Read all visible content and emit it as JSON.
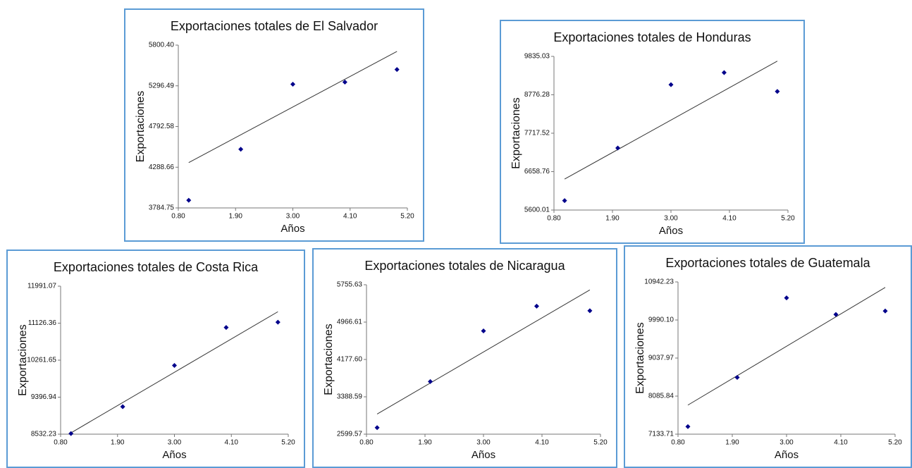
{
  "chart_data": [
    {
      "type": "scatter",
      "title": "Exportaciones totales de El Salvador",
      "x_label": "Años",
      "y_label": "Exportaciones",
      "x": [
        1,
        2,
        3,
        4,
        5
      ],
      "values": [
        3880,
        4511,
        5316,
        5342,
        5498
      ],
      "trendline": {
        "x": [
          1,
          5
        ],
        "values": [
          4346,
          5722
        ]
      },
      "xlim": [
        0.8,
        5.2
      ],
      "xticks": [
        {
          "value": 0.8,
          "label": "0.80"
        },
        {
          "value": 1.9,
          "label": "1.90"
        },
        {
          "value": 3,
          "label": "3.00"
        },
        {
          "value": 4.1,
          "label": "4.10"
        },
        {
          "value": 5.2,
          "label": "5.20"
        }
      ],
      "ylim": [
        3784.75,
        5800.4
      ],
      "yticks": [
        3784.75,
        4288.66,
        4792.58,
        5296.49,
        {
          "value": 5800.4,
          "label": "5800.40"
        }
      ],
      "point_color": "#00008b",
      "line_color": "#333333",
      "grid": false
    },
    {
      "type": "scatter",
      "title": "Exportaciones totales de Honduras",
      "x_label": "Años",
      "y_label": "Exportaciones",
      "x": [
        1,
        2,
        3,
        4,
        5
      ],
      "values": [
        5860,
        7309,
        9055,
        9389,
        8869
      ],
      "trendline": {
        "x": [
          1,
          5
        ],
        "values": [
          6454,
          9704
        ]
      },
      "xlim": [
        0.8,
        5.2
      ],
      "xticks": [
        {
          "value": 0.8,
          "label": "0.80"
        },
        {
          "value": 1.9,
          "label": "1.90"
        },
        {
          "value": 3,
          "label": "3.00"
        },
        {
          "value": 4.1,
          "label": "4.10"
        },
        {
          "value": 5.2,
          "label": "5.20"
        }
      ],
      "ylim": [
        5600.01,
        9835.03
      ],
      "yticks": [
        5600.01,
        6658.76,
        7717.52,
        8776.28,
        9835.03
      ],
      "point_color": "#00008b",
      "line_color": "#333333",
      "grid": false
    },
    {
      "type": "scatter",
      "title": "Exportaciones totales de Costa Rica",
      "x_label": "Años",
      "y_label": "Exportaciones",
      "x": [
        1,
        2,
        3,
        4,
        5
      ],
      "values": [
        8547,
        9175,
        10139,
        11026,
        11148
      ],
      "trendline": {
        "x": [
          1,
          5
        ],
        "values": [
          8563,
          11394
        ]
      },
      "xlim": [
        0.8,
        5.2
      ],
      "xticks": [
        {
          "value": 0.8,
          "label": "0.80"
        },
        {
          "value": 1.9,
          "label": "1.90"
        },
        {
          "value": 3,
          "label": "3.00"
        },
        {
          "value": 4.1,
          "label": "4.10"
        },
        {
          "value": 5.2,
          "label": "5.20"
        }
      ],
      "ylim": [
        8532.23,
        11991.07
      ],
      "yticks": [
        8532.23,
        9396.94,
        10261.65,
        11126.36,
        11991.07
      ],
      "point_color": "#00008b",
      "line_color": "#333333",
      "grid": false
    },
    {
      "type": "scatter",
      "title": "Exportaciones totales de Nicaragua",
      "x_label": "Años",
      "y_label": "Exportaciones",
      "x": [
        1,
        2,
        3,
        4,
        5
      ],
      "values": [
        2737,
        3711,
        4781,
        5303,
        5207
      ],
      "trendline": {
        "x": [
          1,
          5
        ],
        "values": [
          3025,
          5646
        ]
      },
      "xlim": [
        0.8,
        5.2
      ],
      "xticks": [
        {
          "value": 0.8,
          "label": "0.80"
        },
        {
          "value": 1.9,
          "label": "1.90"
        },
        {
          "value": 3,
          "label": "3.00"
        },
        {
          "value": 4.1,
          "label": "4.10"
        },
        {
          "value": 5.2,
          "label": "5.20"
        }
      ],
      "ylim": [
        2599.57,
        5755.63
      ],
      "yticks": [
        2599.57,
        3388.59,
        {
          "value": 4177.6,
          "label": "4177.60"
        },
        4966.61,
        5755.63
      ],
      "point_color": "#00008b",
      "line_color": "#333333",
      "grid": false
    },
    {
      "type": "scatter",
      "title": "Exportaciones totales de Guatemala",
      "x_label": "Años",
      "y_label": "Exportaciones",
      "x": [
        1,
        2,
        3,
        4,
        5
      ],
      "values": [
        7324,
        8553,
        10544,
        10129,
        10215
      ],
      "trendline": {
        "x": [
          1,
          5
        ],
        "values": [
          7861,
          10804
        ]
      },
      "xlim": [
        0.8,
        5.2
      ],
      "xticks": [
        {
          "value": 0.8,
          "label": "0.80"
        },
        {
          "value": 1.9,
          "label": "1.90"
        },
        {
          "value": 3,
          "label": "3.00"
        },
        {
          "value": 4.1,
          "label": "4.10"
        },
        {
          "value": 5.2,
          "label": "5.20"
        }
      ],
      "ylim": [
        7133.71,
        10942.23
      ],
      "yticks": [
        7133.71,
        8085.84,
        9037.97,
        {
          "value": 9990.1,
          "label": "9990.10"
        },
        10942.23
      ],
      "point_color": "#00008b",
      "line_color": "#333333",
      "grid": false
    }
  ]
}
